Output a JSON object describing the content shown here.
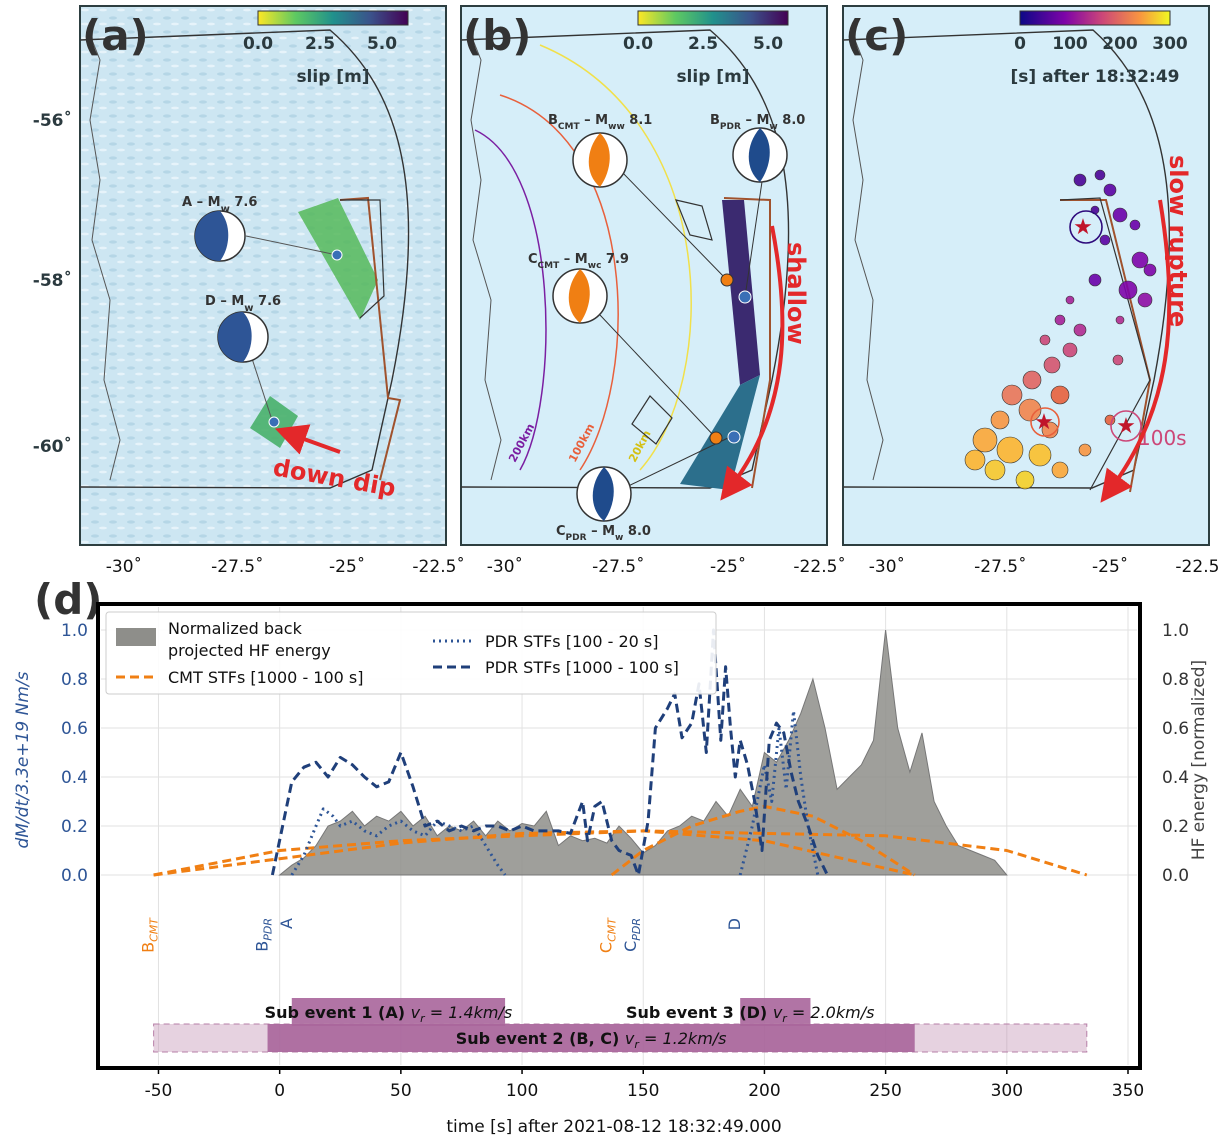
{
  "panels": {
    "a": {
      "letter": "(a)",
      "cb_ticks": [
        "0.0",
        "2.5",
        "5.0"
      ],
      "cb_label": "slip [m]",
      "labels": {
        "A": "A – M",
        "A_sub": "w",
        "A_mag": " 7.6",
        "D": "D – M",
        "D_sub": "w",
        "D_mag": " 7.6"
      },
      "arrow_text": "down dip"
    },
    "b": {
      "letter": "(b)",
      "cb_ticks": [
        "0.0",
        "2.5",
        "5.0"
      ],
      "cb_label": "slip [m]",
      "labels": {
        "Bcmt": "B",
        "Bcmt_sub": "CMT",
        "Bcmt_rest": " – M",
        "Bcmt_sub2": "ww",
        "Bcmt_mag": " 8.1",
        "Bpdr": "B",
        "Bpdr_sub": "PDR",
        "Bpdr_rest": " – M",
        "Bpdr_sub2": "w",
        "Bpdr_mag": " 8.0",
        "Ccmt": "C",
        "Ccmt_sub": "CMT",
        "Ccmt_rest": " – M",
        "Ccmt_sub2": "wc",
        "Ccmt_mag": " 7.9",
        "Cpdr": "C",
        "Cpdr_sub": "PDR",
        "Cpdr_rest": " – M",
        "Cpdr_sub2": "w",
        "Cpdr_mag": " 8.0"
      },
      "contours": [
        "200km",
        "100km",
        "20km"
      ],
      "arrow_text": "shallow"
    },
    "c": {
      "letter": "(c)",
      "cb_ticks": [
        "0",
        "100",
        "200",
        "300"
      ],
      "cb_label": "[s] after 18:32:49",
      "arrow_text": "slow rupture",
      "marker_text": "100s"
    },
    "d": {
      "letter": "(d)"
    }
  },
  "map_axes": {
    "lon_ticks": [
      "-30˚",
      "-27.5˚",
      "-25˚",
      "-22.5˚"
    ],
    "lat_ticks": [
      "-56˚",
      "-58˚",
      "-60˚"
    ]
  },
  "chart_data": {
    "type": "area",
    "xlabel": "time [s] after 2021-08-12 18:32:49.000",
    "ylabel_left": "dM/dt/3.3e+19 Nm/s",
    "ylabel_right": "HF energy [normalized]",
    "xlim": [
      -70,
      350
    ],
    "ylim": [
      -1.0,
      1.1
    ],
    "x_ticks": [
      -50,
      0,
      50,
      100,
      150,
      200,
      250,
      300,
      350
    ],
    "y_ticks": [
      0.0,
      0.2,
      0.4,
      0.6,
      0.8,
      1.0
    ],
    "grid": true,
    "legend_position": "top-left",
    "series": [
      {
        "name": "Normalized back projected HF energy",
        "style": "filled",
        "color": "#8e8e8a",
        "x": [
          0,
          5,
          10,
          15,
          20,
          25,
          30,
          35,
          40,
          45,
          50,
          55,
          60,
          65,
          70,
          75,
          80,
          85,
          90,
          95,
          100,
          105,
          110,
          115,
          120,
          125,
          130,
          135,
          140,
          145,
          150,
          155,
          160,
          165,
          170,
          175,
          180,
          185,
          190,
          195,
          200,
          205,
          210,
          215,
          220,
          225,
          230,
          235,
          240,
          245,
          250,
          255,
          260,
          265,
          270,
          275,
          280,
          285,
          290,
          295,
          300
        ],
        "y": [
          0.0,
          0.04,
          0.07,
          0.12,
          0.2,
          0.22,
          0.26,
          0.2,
          0.24,
          0.22,
          0.26,
          0.2,
          0.24,
          0.16,
          0.2,
          0.18,
          0.22,
          0.16,
          0.22,
          0.18,
          0.21,
          0.2,
          0.26,
          0.12,
          0.16,
          0.14,
          0.15,
          0.13,
          0.2,
          0.15,
          0.09,
          0.12,
          0.18,
          0.2,
          0.24,
          0.22,
          0.3,
          0.24,
          0.35,
          0.28,
          0.5,
          0.46,
          0.55,
          0.66,
          0.8,
          0.6,
          0.35,
          0.4,
          0.45,
          0.55,
          1.0,
          0.6,
          0.42,
          0.58,
          0.3,
          0.2,
          0.12,
          0.1,
          0.08,
          0.06,
          0.0
        ]
      },
      {
        "name": "CMT STFs [1000 - 100 s]",
        "style": "dashed",
        "color": "#f07f13",
        "x": [
          -52,
          0,
          50,
          100,
          150,
          200,
          262
        ],
        "y": [
          0.0,
          0.1,
          0.14,
          0.16,
          0.18,
          0.14,
          0.0
        ]
      },
      {
        "name": "CMT STFs [1000 - 100 s]",
        "style": "dashed",
        "color": "#f07f13",
        "legend": false,
        "x": [
          -52,
          50,
          100,
          150,
          200,
          250,
          300,
          333
        ],
        "y": [
          0.0,
          0.13,
          0.17,
          0.18,
          0.17,
          0.16,
          0.1,
          0.0
        ]
      },
      {
        "name": "CMT STFs [1000 - 100 s]",
        "style": "dashed",
        "color": "#f07f13",
        "legend": false,
        "x": [
          137,
          150,
          170,
          190,
          200,
          220,
          240,
          262
        ],
        "y": [
          0.0,
          0.1,
          0.2,
          0.26,
          0.28,
          0.24,
          0.14,
          0.0
        ]
      },
      {
        "name": "PDR STFs [100 - 20 s]",
        "style": "dotted",
        "color": "#2e5596",
        "x": [
          5,
          10,
          15,
          18,
          22,
          25,
          30,
          35,
          40,
          45,
          50,
          55,
          60,
          65,
          70,
          75,
          80,
          85,
          90,
          93
        ],
        "y": [
          0.0,
          0.08,
          0.2,
          0.27,
          0.24,
          0.2,
          0.22,
          0.18,
          0.16,
          0.2,
          0.22,
          0.18,
          0.16,
          0.22,
          0.2,
          0.18,
          0.2,
          0.12,
          0.04,
          0.0
        ]
      },
      {
        "name": "PDR STFs [100 - 20 s]",
        "style": "dotted",
        "color": "#2e5596",
        "legend": false,
        "x": [
          190,
          195,
          200,
          203,
          206,
          209,
          212,
          215,
          218,
          222
        ],
        "y": [
          0.0,
          0.2,
          0.45,
          0.3,
          0.6,
          0.35,
          0.67,
          0.4,
          0.2,
          0.0
        ]
      },
      {
        "name": "PDR STFs [1000 - 100 s]",
        "style": "dashed",
        "color": "#1f3f7a",
        "x": [
          -3,
          5,
          10,
          15,
          20,
          25,
          30,
          35,
          40,
          45,
          50,
          55,
          60,
          65,
          70,
          75,
          80,
          85,
          90,
          95,
          100,
          105,
          110,
          115,
          120,
          125,
          127,
          130,
          133,
          137,
          140,
          145,
          148,
          152,
          155,
          160,
          163,
          166,
          170,
          173,
          176,
          179,
          182,
          184,
          186,
          188,
          190,
          193,
          196,
          199,
          202,
          205,
          208,
          211,
          214,
          218,
          222,
          226
        ],
        "y": [
          0.0,
          0.38,
          0.44,
          0.46,
          0.4,
          0.48,
          0.45,
          0.4,
          0.36,
          0.38,
          0.5,
          0.36,
          0.2,
          0.22,
          0.18,
          0.2,
          0.18,
          0.2,
          0.2,
          0.18,
          0.2,
          0.18,
          0.18,
          0.18,
          0.17,
          0.3,
          0.14,
          0.28,
          0.3,
          0.14,
          0.1,
          0.08,
          0.0,
          0.22,
          0.6,
          0.68,
          0.74,
          0.56,
          0.62,
          0.78,
          0.5,
          1.0,
          0.55,
          0.85,
          0.6,
          0.4,
          0.55,
          0.45,
          0.3,
          0.1,
          0.55,
          0.62,
          0.58,
          0.42,
          0.3,
          0.2,
          0.08,
          0.0
        ]
      }
    ],
    "event_markers": [
      {
        "label": "B",
        "sub": "CMT",
        "x": -52,
        "color": "#f07f13"
      },
      {
        "label": "B",
        "sub": "PDR",
        "x": -5,
        "color": "#2e5596"
      },
      {
        "label": "A",
        "sub": "",
        "x": 5,
        "color": "#2e5596"
      },
      {
        "label": "C",
        "sub": "CMT",
        "x": 137,
        "color": "#f07f13"
      },
      {
        "label": "C",
        "sub": "PDR",
        "x": 147,
        "color": "#2e5596"
      },
      {
        "label": "D",
        "sub": "",
        "x": 190,
        "color": "#2e5596"
      }
    ],
    "subevents": [
      {
        "label": "Sub event 1 (A)",
        "vr": "v",
        "vr_sub": "r",
        "vr_val": " = 1.4km/s",
        "start": 5,
        "end": 93
      },
      {
        "label": "Sub event 3 (D)",
        "vr": "v",
        "vr_sub": "r",
        "vr_val": " = 2.0km/s",
        "start": 190,
        "end": 219
      },
      {
        "label": "Sub event 2 (B, C)",
        "vr": "v",
        "vr_sub": "r",
        "vr_val": " = 1.2km/s",
        "start": -5,
        "end": 262,
        "ext_start": -52,
        "ext_end": 333
      }
    ],
    "legend": {
      "hf_line1": "Normalized back",
      "hf_line2": "projected HF energy",
      "cmt": "CMT STFs [1000 - 100 s]",
      "pdr_dot": "PDR STFs [100 - 20 s]",
      "pdr_dash": "PDR STFs [1000 - 100 s]"
    }
  }
}
